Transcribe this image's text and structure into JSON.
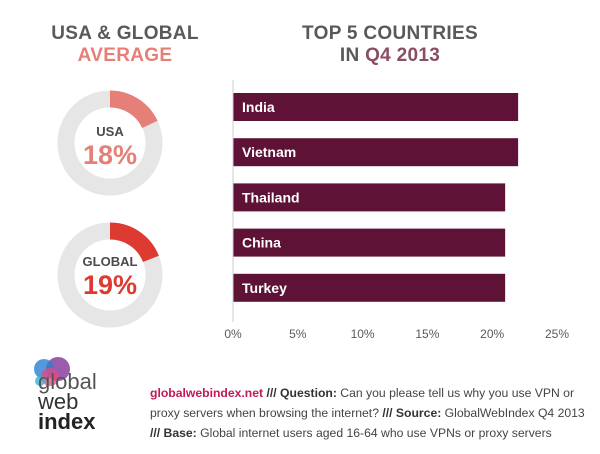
{
  "left_heading": {
    "line1": "USA & GLOBAL",
    "line2": "AVERAGE"
  },
  "right_heading": {
    "line1": "TOP 5 COUNTRIES",
    "line2_prefix": "IN",
    "line2_highlight": "Q4 2013"
  },
  "donuts": [
    {
      "label": "USA",
      "value_text": "18%",
      "value": 18,
      "color": "#e57f77",
      "value_color": "#e57f77",
      "track_color": "#e6e6e6"
    },
    {
      "label": "GLOBAL",
      "value_text": "19%",
      "value": 19,
      "color": "#dd3b32",
      "value_color": "#dd3b32",
      "track_color": "#e6e6e6"
    }
  ],
  "chart_data": {
    "type": "bar",
    "orientation": "horizontal",
    "categories": [
      "India",
      "Vietnam",
      "Thailand",
      "China",
      "Turkey"
    ],
    "values": [
      22,
      22,
      21,
      21,
      21
    ],
    "xlim": [
      0,
      25
    ],
    "xticks": [
      "0%",
      "5%",
      "10%",
      "15%",
      "20%",
      "25%"
    ],
    "bar_color": "#5e1336",
    "grid": false
  },
  "footer": {
    "site": "globalwebindex.net",
    "q_key": "/// Question:",
    "q_text": "Can you please tell us why you use VPN or proxy servers when browsing the internet?",
    "s_key": "/// Source:",
    "s_text": "GlobalWebIndex Q4 2013",
    "b_key": "/// Base:",
    "b_text": "Global internet users aged 16-64 who use VPNs or proxy servers"
  },
  "logo": {
    "line1": "global",
    "line2": "web",
    "line3": "index"
  }
}
